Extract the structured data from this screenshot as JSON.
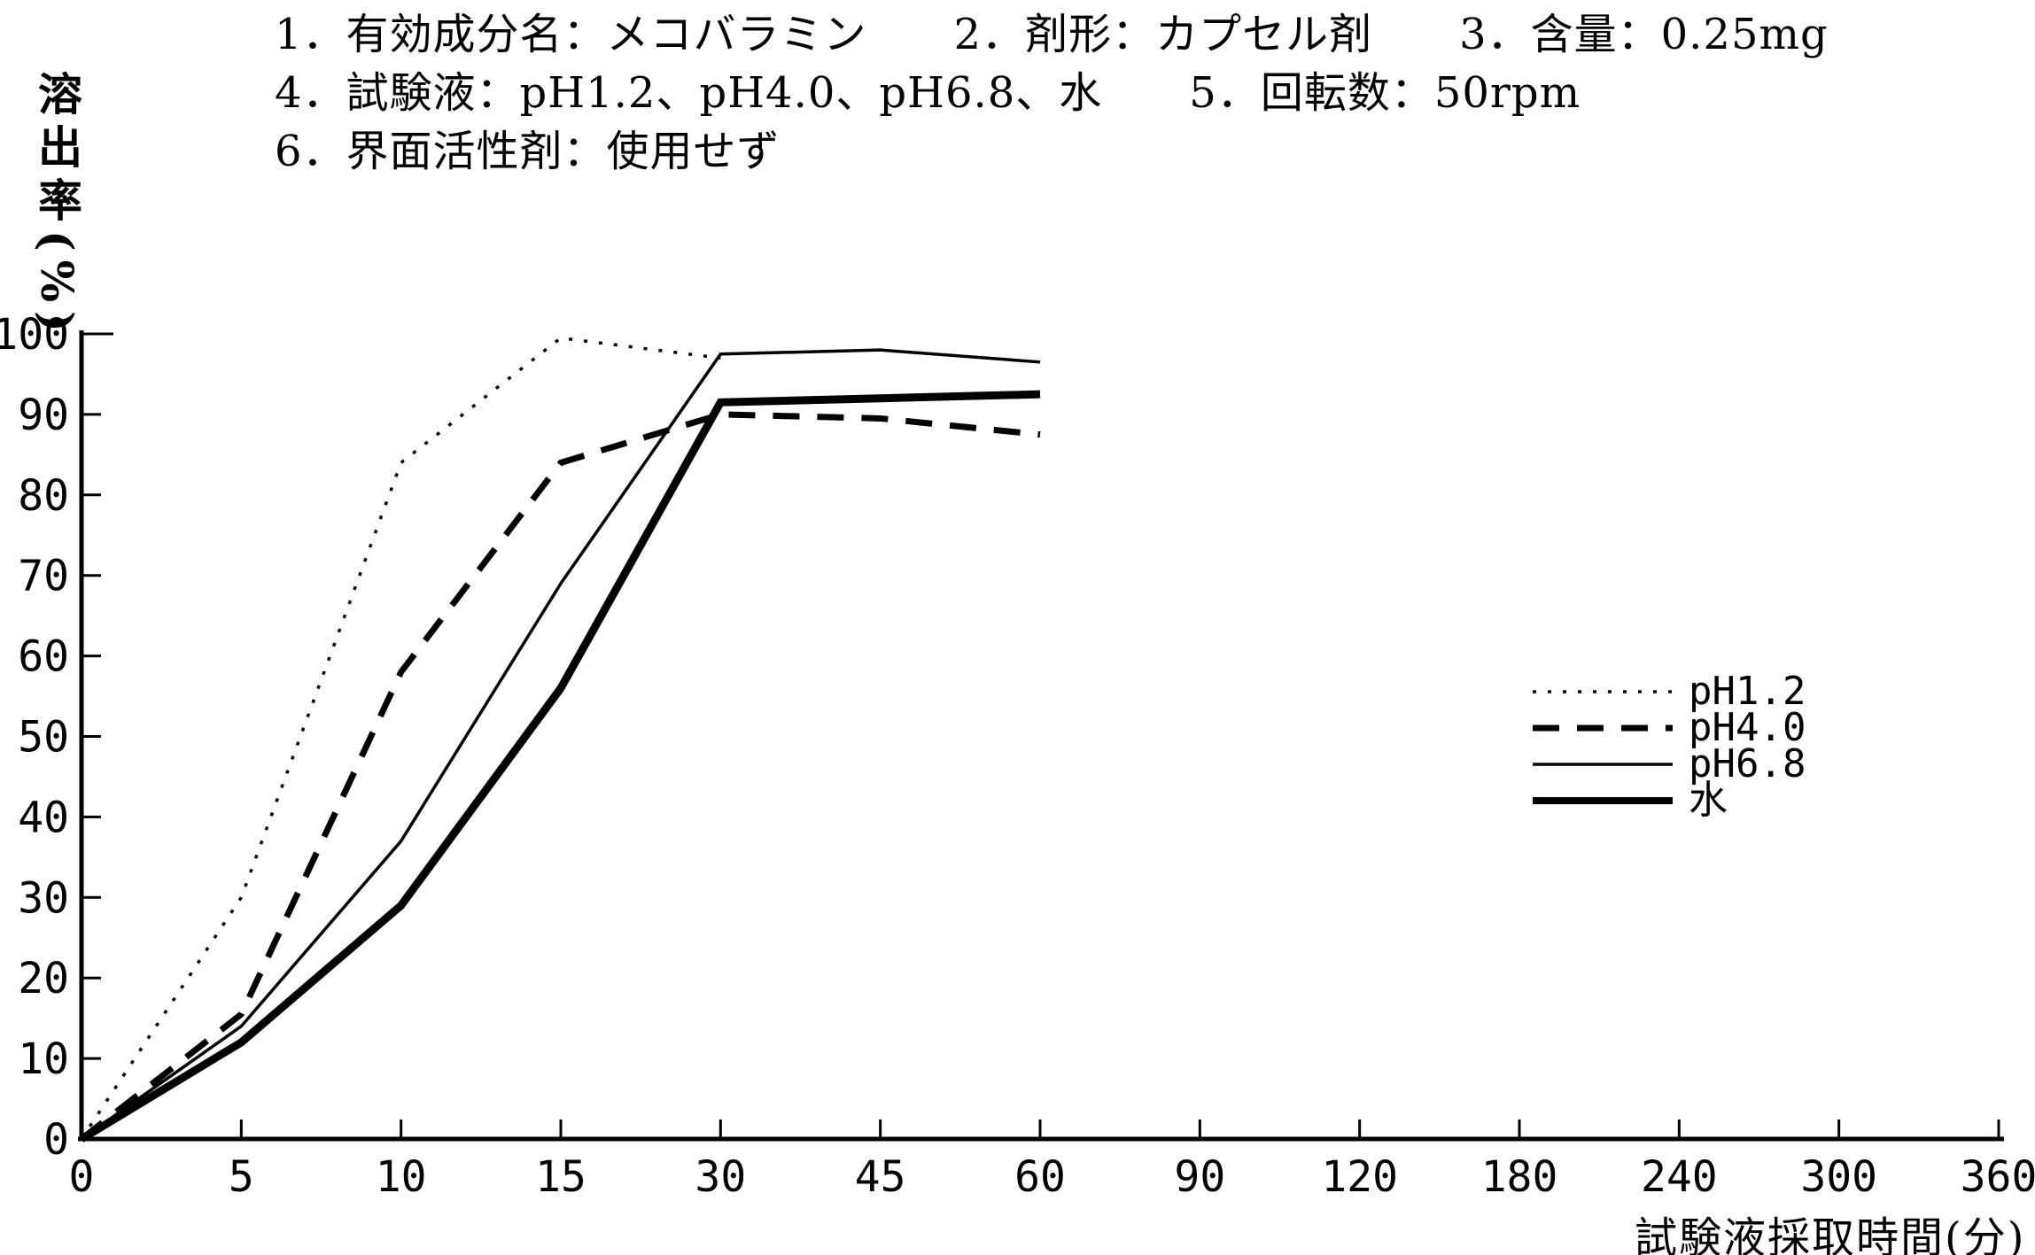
{
  "page": {
    "background": "#ffffff",
    "ink": "#000000"
  },
  "header": {
    "line1": "1．有効成分名：メコバラミン　　2．剤形：カプセル剤　　3．含量：0.25mg",
    "line2": "4．試験液：pH1.2、pH4.0、pH6.8、水　　5．回転数：50rpm",
    "line3": "6．界面活性剤：使用せず"
  },
  "chart_data": {
    "type": "line",
    "title": "",
    "x_label": "試験液採取時間(分)",
    "y_label": "溶出率(%)",
    "x_ticks": [
      0,
      5,
      10,
      15,
      30,
      45,
      60,
      90,
      120,
      180,
      240,
      300,
      360
    ],
    "x_scale": "categorical-equal-spacing",
    "ylim": [
      0,
      100
    ],
    "y_tick_step": 10,
    "grid": false,
    "legend_position": "middle-right",
    "series": [
      {
        "name": "pH1.2",
        "line_style": "dotted",
        "x": [
          0,
          5,
          10,
          15,
          30
        ],
        "y": [
          0,
          30,
          84,
          99.5,
          97
        ]
      },
      {
        "name": "pH4.0",
        "line_style": "dashed",
        "x": [
          0,
          5,
          10,
          15,
          30,
          45,
          60
        ],
        "y": [
          0,
          15.5,
          58,
          84,
          90,
          89.5,
          87.5
        ]
      },
      {
        "name": "pH6.8",
        "line_style": "solid-thin",
        "x": [
          0,
          5,
          10,
          15,
          30,
          45,
          60
        ],
        "y": [
          0,
          14,
          37,
          69,
          97.5,
          98,
          96.5
        ]
      },
      {
        "name": "水",
        "line_style": "solid-thick",
        "x": [
          0,
          5,
          10,
          15,
          30,
          45,
          60
        ],
        "y": [
          0,
          12,
          29,
          56,
          91.5,
          92,
          92.5
        ]
      }
    ]
  }
}
